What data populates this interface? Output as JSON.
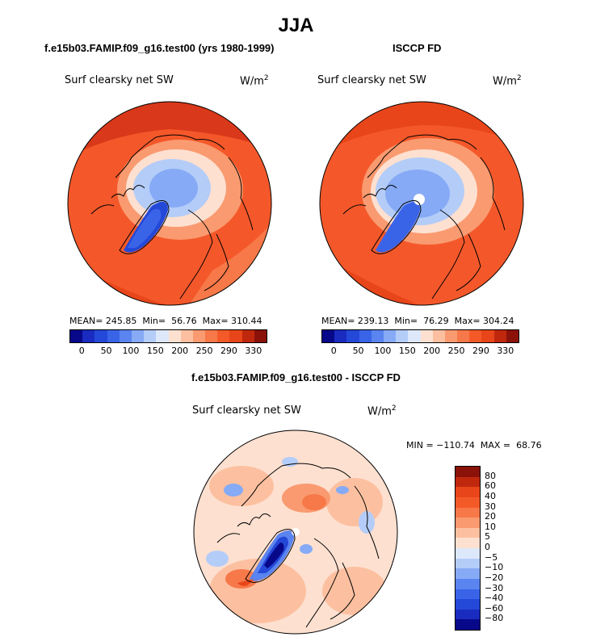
{
  "title": "JJA",
  "panels": [
    {
      "title": "f.e15b03.FAMIP.f09_g16.test00 (yrs 1980-1999)",
      "variable": "Surf clearsky net SW",
      "units": "W/m",
      "units_sup": "2",
      "stats": "MEAN= 245.85  Min=  56.76  Max= 310.44"
    },
    {
      "title": "ISCCP FD",
      "variable": "Surf clearsky net SW",
      "units": "W/m",
      "units_sup": "2",
      "stats": "MEAN= 239.13  Min=  76.29  Max= 304.24"
    }
  ],
  "abs_colorbar": {
    "labels": [
      "0",
      "50",
      "100",
      "150",
      "200",
      "250",
      "290",
      "330"
    ],
    "colors": [
      "#08088a",
      "#1a2cc0",
      "#2448d8",
      "#3a64e8",
      "#5a84f0",
      "#86aaf5",
      "#b4ccf8",
      "#dde8fb",
      "#fde0d0",
      "#fcc0a0",
      "#fa9a70",
      "#f77848",
      "#f45a28",
      "#e8461a",
      "#c0280e",
      "#8a1208"
    ]
  },
  "diff_panel": {
    "title": "f.e15b03.FAMIP.f09_g16.test00 - ISCCP FD",
    "variable": "Surf clearsky net SW",
    "units": "W/m",
    "units_sup": "2",
    "stats": "MIN = −110.74  MAX =  68.76"
  },
  "diff_colorbar": {
    "labels": [
      "80",
      "60",
      "40",
      "30",
      "20",
      "10",
      "5",
      "0",
      "−5",
      "−10",
      "−20",
      "−30",
      "−40",
      "−60",
      "−80"
    ],
    "colors": [
      "#8a1208",
      "#c0280e",
      "#e8461a",
      "#f45a28",
      "#f77848",
      "#fa9a70",
      "#fcc0a0",
      "#fde0d0",
      "#dde8fb",
      "#b4ccf8",
      "#86aaf5",
      "#5a84f0",
      "#3a64e8",
      "#2448d8",
      "#1a2cc0",
      "#08088a"
    ]
  }
}
